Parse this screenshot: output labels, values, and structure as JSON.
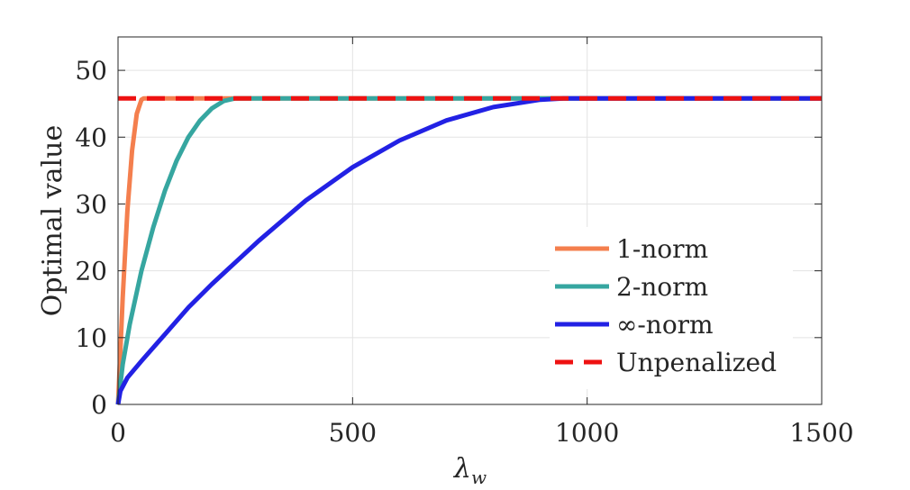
{
  "chart_data": {
    "type": "line",
    "title": "",
    "xlabel": "λ",
    "xlabel_subscript": "w",
    "ylabel": "Optimal value",
    "xlim": [
      0,
      1500
    ],
    "ylim": [
      0,
      55
    ],
    "xticks": [
      0,
      500,
      1000,
      1500
    ],
    "xtick_labels": [
      "0",
      "500",
      "1000",
      "1500"
    ],
    "yticks": [
      0,
      10,
      20,
      30,
      40,
      50
    ],
    "ytick_labels": [
      "0",
      "10",
      "20",
      "30",
      "40",
      "50"
    ],
    "grid": true,
    "legend_position": "bottom-right",
    "series": [
      {
        "name": "1-norm",
        "color": "#F47F4E",
        "style": "solid",
        "x": [
          0,
          10,
          20,
          30,
          40,
          50,
          55,
          1500
        ],
        "y": [
          0,
          16,
          29,
          38,
          43.5,
          45.6,
          45.8,
          45.8
        ]
      },
      {
        "name": "2-norm",
        "color": "#36A6A0",
        "style": "solid",
        "x": [
          0,
          10,
          25,
          50,
          75,
          100,
          125,
          150,
          175,
          200,
          225,
          250,
          1500
        ],
        "y": [
          0,
          6,
          12,
          20,
          26.5,
          32,
          36.5,
          40,
          42.5,
          44.3,
          45.4,
          45.8,
          45.8
        ]
      },
      {
        "name": "∞-norm",
        "color": "#2221E4",
        "style": "solid",
        "x": [
          0,
          5,
          20,
          50,
          100,
          150,
          200,
          300,
          400,
          500,
          600,
          700,
          800,
          900,
          950,
          1500
        ],
        "y": [
          0,
          2,
          4,
          6.5,
          10.5,
          14.5,
          18,
          24.5,
          30.5,
          35.5,
          39.5,
          42.5,
          44.5,
          45.6,
          45.8,
          45.8
        ]
      },
      {
        "name": "Unpenalized",
        "color": "#EE1111",
        "style": "dashed",
        "x": [
          0,
          1500
        ],
        "y": [
          45.8,
          45.8
        ]
      }
    ]
  }
}
